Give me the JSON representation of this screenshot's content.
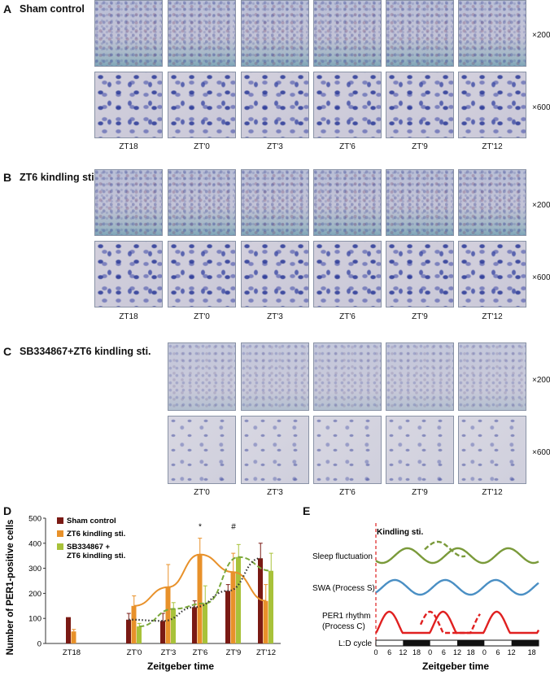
{
  "panel_a": {
    "letter": "A",
    "title": "Sham control",
    "labels": [
      "ZT18",
      "ZT'0",
      "ZT'3",
      "ZT'6",
      "ZT'9",
      "ZT'12"
    ]
  },
  "panel_b": {
    "letter": "B",
    "title": "ZT6 kindling sti.",
    "labels": [
      "ZT18",
      "ZT'0",
      "ZT'3",
      "ZT'6",
      "ZT'9",
      "ZT'12"
    ]
  },
  "panel_c": {
    "letter": "C",
    "title": "SB334867+ZT6 kindling sti.",
    "labels": [
      "ZT'0",
      "ZT'3",
      "ZT'6",
      "ZT'9",
      "ZT'12"
    ]
  },
  "magnifications": {
    "low": "×200",
    "high": "×600"
  },
  "panel_d": {
    "letter": "D"
  },
  "panel_e": {
    "letter": "E"
  },
  "chart_data": [
    {
      "type": "bar",
      "ylabel": "Number of PER1-positive cells",
      "xlabel": "Zeitgeber time",
      "categories": [
        "ZT18",
        "ZT'0",
        "ZT'3",
        "ZT'6",
        "ZT'9",
        "ZT'12"
      ],
      "ylim": [
        0,
        500
      ],
      "yticks": [
        "0",
        "100",
        "200",
        "300",
        "400",
        "500"
      ],
      "series": [
        {
          "name": "Sham control",
          "color": "#7a1a14",
          "values": [
            105,
            95,
            90,
            145,
            210,
            340
          ],
          "errors": [
            0,
            25,
            30,
            25,
            25,
            60
          ]
        },
        {
          "name": "ZT6 kindling sti.",
          "color": "#e8912a",
          "values": [
            48,
            150,
            225,
            355,
            285,
            170
          ],
          "errors": [
            8,
            40,
            90,
            65,
            75,
            65
          ]
        },
        {
          "name": "SB334867 + ZT6 kindling sti.",
          "legend_lines": [
            "SB334867 +",
            "ZT6 kindling sti."
          ],
          "color": "#a8c23a",
          "values": [
            null,
            68,
            138,
            160,
            345,
            290
          ],
          "errors": [
            0,
            12,
            25,
            70,
            50,
            70
          ]
        }
      ],
      "annotations": [
        {
          "text": "*",
          "category": "ZT'6"
        },
        {
          "text": "#",
          "category": "ZT'9"
        }
      ]
    },
    {
      "type": "line",
      "title": "Kindling sti.",
      "xlabel": "Zeitgeber time",
      "xticks": [
        "0",
        "6",
        "12",
        "18",
        "0",
        "6",
        "12",
        "18",
        "0",
        "6",
        "12",
        "18"
      ],
      "row_labels": [
        "Sleep fluctuation",
        "SWA (Process S)",
        "PER1 rhythm",
        "(Process C)",
        "L:D cycle"
      ],
      "colors": {
        "sleep": "#7a9a3a",
        "swa": "#4a8fc4",
        "per1": "#e02020",
        "kindling": "#e03030"
      }
    }
  ]
}
